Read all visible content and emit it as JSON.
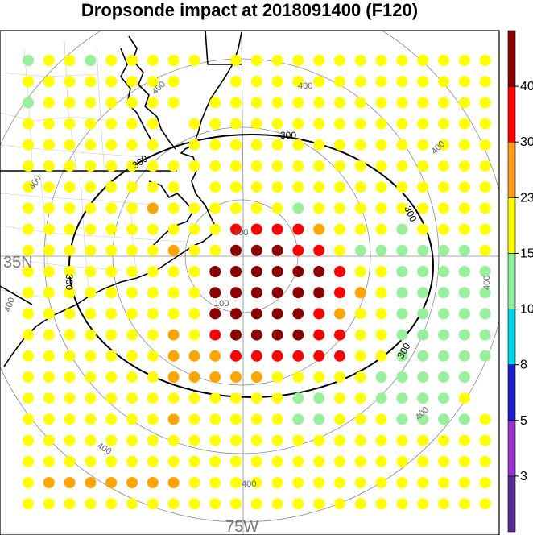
{
  "title": "Dropsonde impact at 2018091400 (F120)",
  "axes": {
    "lat_label": "35N",
    "lon_label": "75W"
  },
  "range_ring_labels": [
    "100",
    "100",
    "300",
    "300",
    "300",
    "300",
    "300",
    "400",
    "400",
    "400",
    "400",
    "400",
    "400",
    "400",
    "400",
    "400"
  ],
  "colorbar": {
    "ticks": [
      "3",
      "5",
      "8",
      "10",
      "15",
      "23",
      "30",
      "40"
    ],
    "colors": [
      "#5a2d91",
      "#9932cc",
      "#1e1ecd",
      "#00d2e6",
      "#8ff0a0",
      "#ffff00",
      "#ff9e1e",
      "#ff0000",
      "#8b0000"
    ]
  },
  "impact_grid": {
    "legend": {
      "g": "#98f09c",
      "y": "#ffff00",
      "o": "#ffa500",
      "r": "#ff0000",
      "d": "#8b0000"
    },
    "rows": [
      "gyygyyyyy.yyyyyyyyyyyyy",
      "yyyyyyyy..yyyyyyyyyyyyy",
      "gyyyyyyy.yyyyyyyyyyyyyy",
      "yyyyyyy.yyyyyyyyyyyyyyy",
      "yyyyyyy.yyyyyyyyyyyyyyy",
      "yyyyyyyyyyyyyyyyyyyyyyy",
      "yyyyyyyy.yyyyyyyyyyyyyy",
      "yyyyyyoyyyyyygyyyyyyyyy",
      "yyyyyyyyyyrrrroyyygyyyy",
      "yyyyyyyoyydddrryggggggy",
      "yyyyyyyyyddddddryyggggg",
      "yyyyyyyyyddddddroyggggg",
      "yyyyyyyyydddddroyyggggg",
      "yyyyyyyoyrddddrryyggggg",
      "yyyyyyyooorrrrrryyggggg",
      "yyyyyyyoooooyyyyyggggg",
      "yyyyyyyyyyyyyggyyggggy",
      "yyyyyyyoyyyyyggyyyggggy",
      "yyyyyyyyyyyyyyyyyyyyyyy",
      "yyyyyyyyyyyyyyyyyyyyyyy",
      "yoooooooyyyyyyyyyyyyyyy",
      "yyyyyyyyyyyyyyyyyyyyyyy"
    ]
  }
}
